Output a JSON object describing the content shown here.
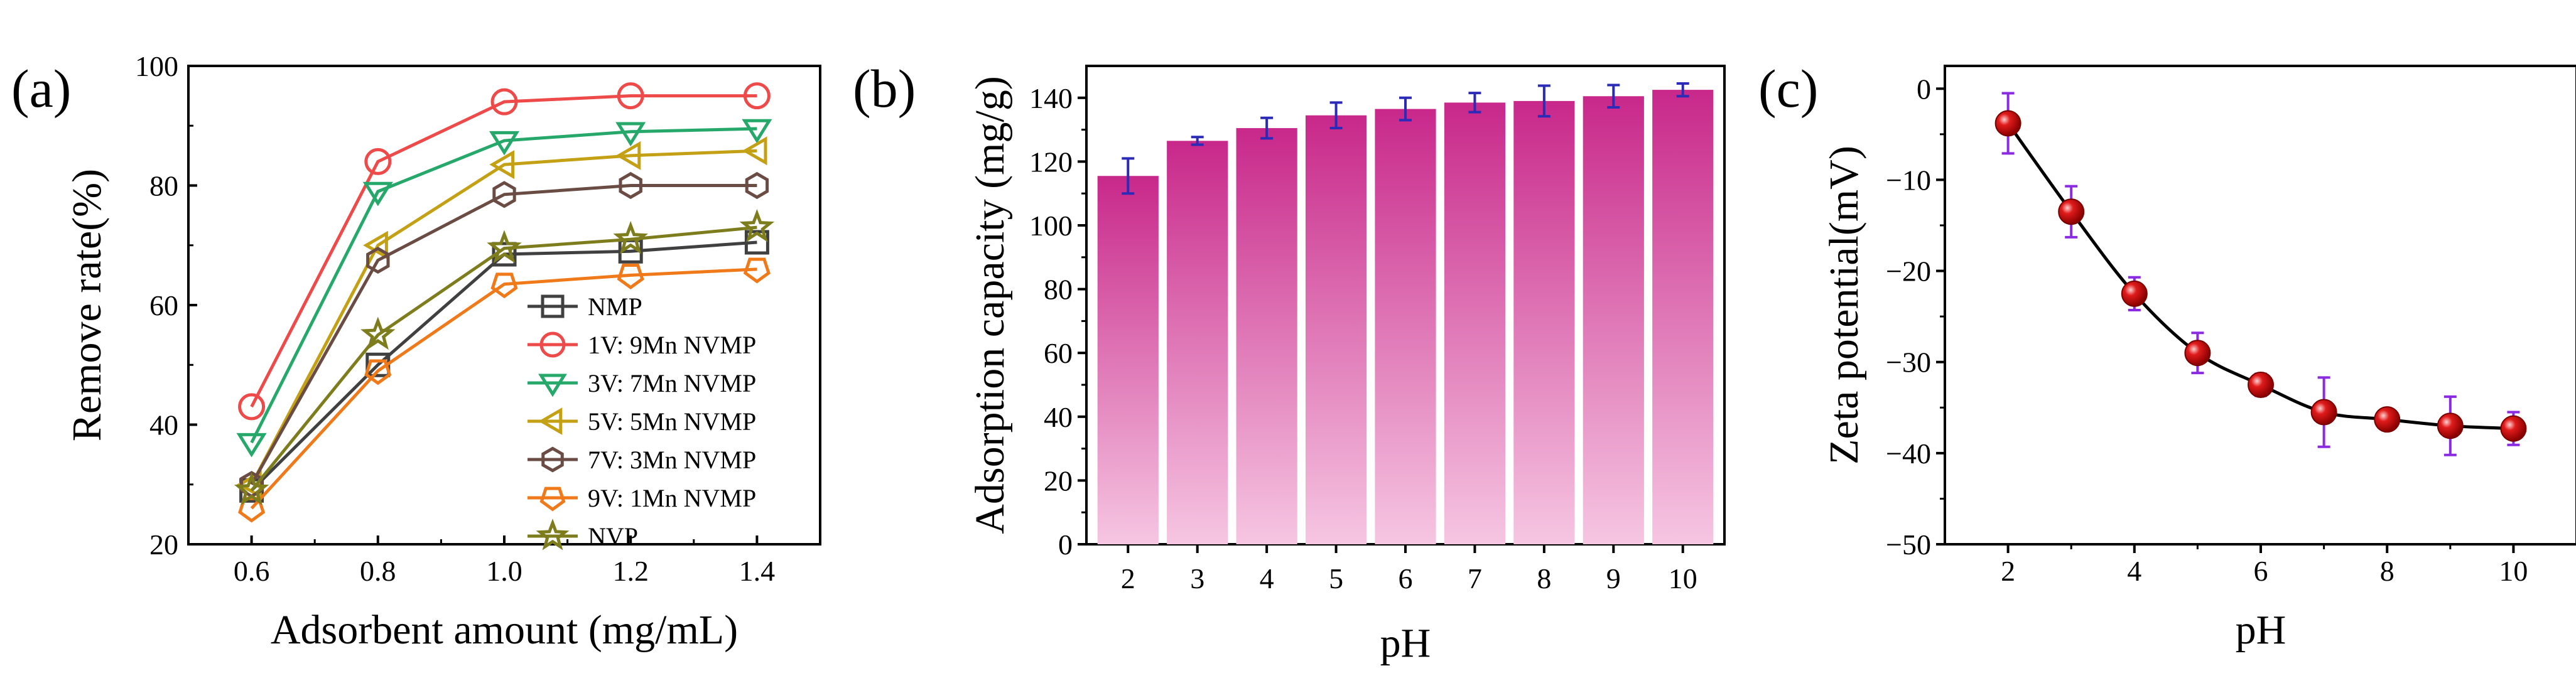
{
  "chart_data": [
    {
      "panel": "(a)",
      "type": "line",
      "xlabel": "Adsorbent amount (mg/mL)",
      "ylabel": "Remove rate(%)",
      "xlim": [
        0.5,
        1.5
      ],
      "ylim": [
        20,
        100
      ],
      "xticks": [
        "0.6",
        "0.8",
        "1.0",
        "1.2",
        "1.4"
      ],
      "yticks": [
        "20",
        "40",
        "60",
        "80",
        "100"
      ],
      "x": [
        0.6,
        0.8,
        1.0,
        1.2,
        1.4
      ],
      "legend_position": "bottom-right",
      "series": [
        {
          "name": "NMP",
          "color": "#404040",
          "marker": "square",
          "values": [
            29,
            50,
            68.5,
            69,
            70.5
          ]
        },
        {
          "name": "1V: 9Mn NVMP",
          "color": "#ef4a4a",
          "marker": "circle",
          "values": [
            43,
            84,
            94,
            95,
            95
          ]
        },
        {
          "name": "3V: 7Mn NVMP",
          "color": "#26a86b",
          "marker": "triangle-down",
          "values": [
            37,
            79,
            87.5,
            89,
            89.5
          ]
        },
        {
          "name": "5V: 5Mn NVMP",
          "color": "#c4a014",
          "marker": "triangle-left",
          "values": [
            30,
            70,
            83.5,
            85,
            85.8
          ]
        },
        {
          "name": "7V: 3Mn NVMP",
          "color": "#6b4c44",
          "marker": "hexagon",
          "values": [
            30,
            67.5,
            78.5,
            80,
            80
          ]
        },
        {
          "name": "9V: 1Mn NVMP",
          "color": "#f07a1a",
          "marker": "pentagon",
          "values": [
            26,
            49,
            63.5,
            65,
            66
          ]
        },
        {
          "name": "NVP",
          "color": "#7d7d1e",
          "marker": "star",
          "values": [
            29,
            55,
            69.5,
            71,
            73
          ]
        }
      ]
    },
    {
      "panel": "(b)",
      "type": "bar",
      "xlabel": "pH",
      "ylabel": "Adsorption capacity (mg/g)",
      "ylim": [
        0,
        150
      ],
      "yticks": [
        "0",
        "20",
        "40",
        "60",
        "80",
        "100",
        "120",
        "140"
      ],
      "categories": [
        "2",
        "3",
        "4",
        "5",
        "6",
        "7",
        "8",
        "9",
        "10"
      ],
      "values": [
        115.5,
        126.5,
        130.5,
        134.5,
        136.5,
        138.5,
        139,
        140.5,
        142.5
      ],
      "errors": [
        5.5,
        1.2,
        3.2,
        4,
        3.5,
        3,
        4.8,
        3.5,
        2
      ],
      "colors": {
        "bar_top": "#c8288a",
        "bar_bottom": "#f6c6e2",
        "error_bar": "#2b2bb8"
      }
    },
    {
      "panel": "(c)",
      "type": "scatter",
      "xlabel": "pH",
      "ylabel": "Zeta potential(mV)",
      "xlim": [
        1,
        11
      ],
      "ylim": [
        -50,
        2.5
      ],
      "xticks": [
        "2",
        "4",
        "6",
        "8",
        "10"
      ],
      "yticks": [
        "0",
        "−10",
        "−20",
        "−30",
        "−40",
        "−50"
      ],
      "x": [
        2,
        3,
        4,
        5,
        6,
        7,
        8,
        9,
        10
      ],
      "values": [
        -3.8,
        -13.5,
        -22.5,
        -29,
        -32.5,
        -35.5,
        -36.3,
        -37,
        -37.3
      ],
      "errors": [
        3.3,
        2.8,
        1.8,
        2.2,
        1.2,
        3.8,
        0.8,
        3.2,
        1.8
      ],
      "colors": {
        "marker": "#e01b1b",
        "line": "#000000",
        "error_bar": "#8a2be2"
      }
    }
  ]
}
